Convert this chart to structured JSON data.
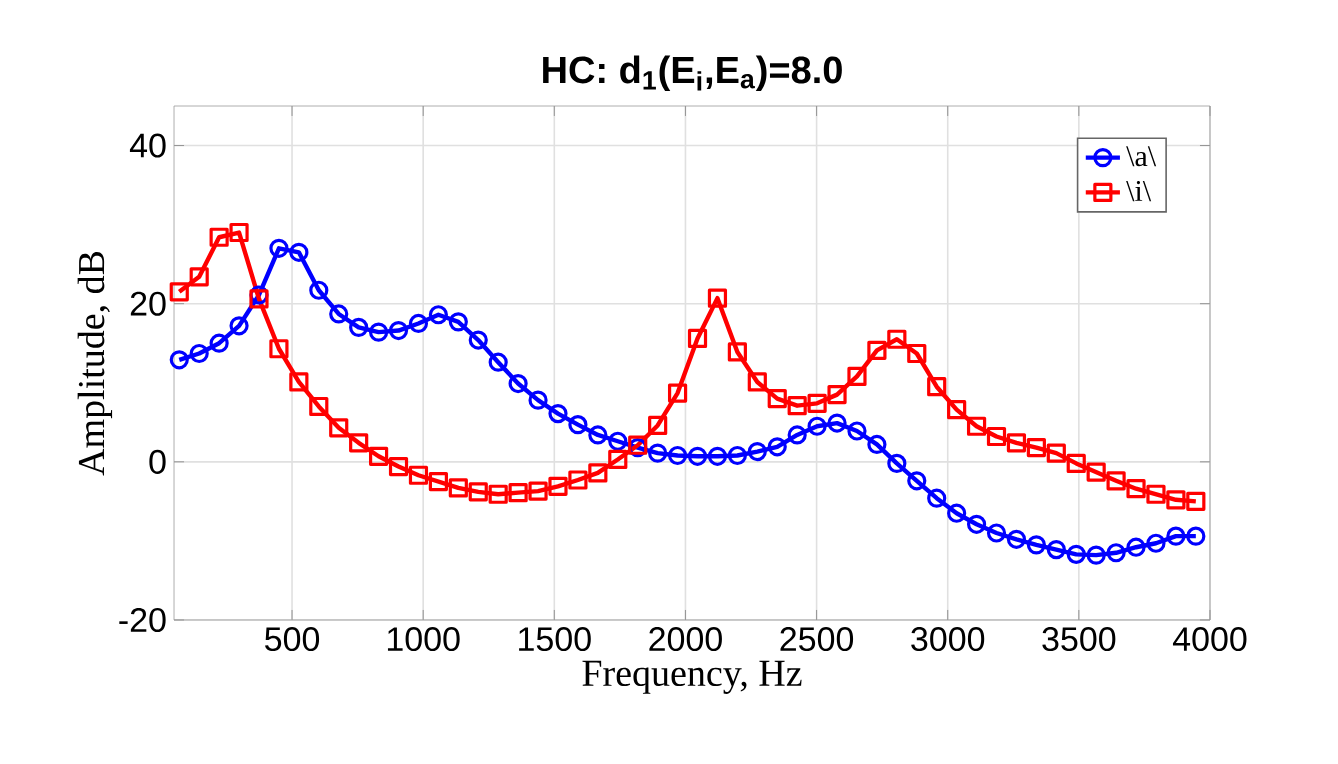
{
  "chart_data": {
    "type": "line",
    "title": "HC:    d$_{1}$(E$_{i}$,E$_{a}$)=8.0",
    "xlabel": "Frequency, Hz",
    "ylabel": "Amplitude, dB",
    "x": [
      70,
      146,
      222,
      298,
      374,
      450,
      526,
      602,
      678,
      754,
      830,
      906,
      982,
      1058,
      1134,
      1210,
      1286,
      1362,
      1438,
      1514,
      1590,
      1666,
      1742,
      1818,
      1894,
      1970,
      2046,
      2122,
      2198,
      2274,
      2350,
      2426,
      2502,
      2578,
      2654,
      2730,
      2806,
      2882,
      2958,
      3034,
      3110,
      3186,
      3262,
      3338,
      3414,
      3490,
      3566,
      3642,
      3718,
      3794,
      3870,
      3946
    ],
    "series": [
      {
        "name": "\\a\\",
        "color": "#0000ff",
        "marker": "circle",
        "values": [
          12.9,
          13.7,
          15.0,
          17.2,
          21.1,
          27.0,
          26.5,
          21.7,
          18.7,
          17.0,
          16.4,
          16.6,
          17.5,
          18.6,
          17.7,
          15.4,
          12.6,
          9.9,
          7.8,
          6.1,
          4.7,
          3.4,
          2.6,
          1.8,
          1.1,
          0.8,
          0.7,
          0.7,
          0.8,
          1.3,
          1.9,
          3.4,
          4.5,
          4.9,
          3.9,
          2.2,
          -0.2,
          -2.4,
          -4.6,
          -6.5,
          -7.9,
          -9.0,
          -9.8,
          -10.5,
          -11.1,
          -11.7,
          -11.8,
          -11.5,
          -10.8,
          -10.3,
          -9.4,
          -9.4
        ]
      },
      {
        "name": "\\i\\",
        "color": "#ff0000",
        "marker": "square",
        "values": [
          21.5,
          23.4,
          28.4,
          29.0,
          20.6,
          14.3,
          10.1,
          7.0,
          4.3,
          2.4,
          0.7,
          -0.6,
          -1.7,
          -2.5,
          -3.3,
          -3.8,
          -4.1,
          -3.9,
          -3.7,
          -3.1,
          -2.3,
          -1.4,
          0.3,
          2.1,
          4.6,
          8.7,
          15.6,
          20.7,
          13.9,
          10.1,
          8.0,
          7.1,
          7.4,
          8.5,
          10.8,
          14.1,
          15.5,
          13.7,
          9.5,
          6.6,
          4.5,
          3.2,
          2.4,
          1.8,
          1.1,
          -0.2,
          -1.3,
          -2.4,
          -3.4,
          -4.1,
          -4.8,
          -5.0
        ]
      }
    ],
    "xlim": [
      50,
      4000
    ],
    "ylim": [
      -20,
      45
    ],
    "xticks": [
      500,
      1000,
      1500,
      2000,
      2500,
      3000,
      3500,
      4000
    ],
    "yticks": [
      -20,
      0,
      20,
      40
    ],
    "grid": true,
    "legend": "top right"
  }
}
